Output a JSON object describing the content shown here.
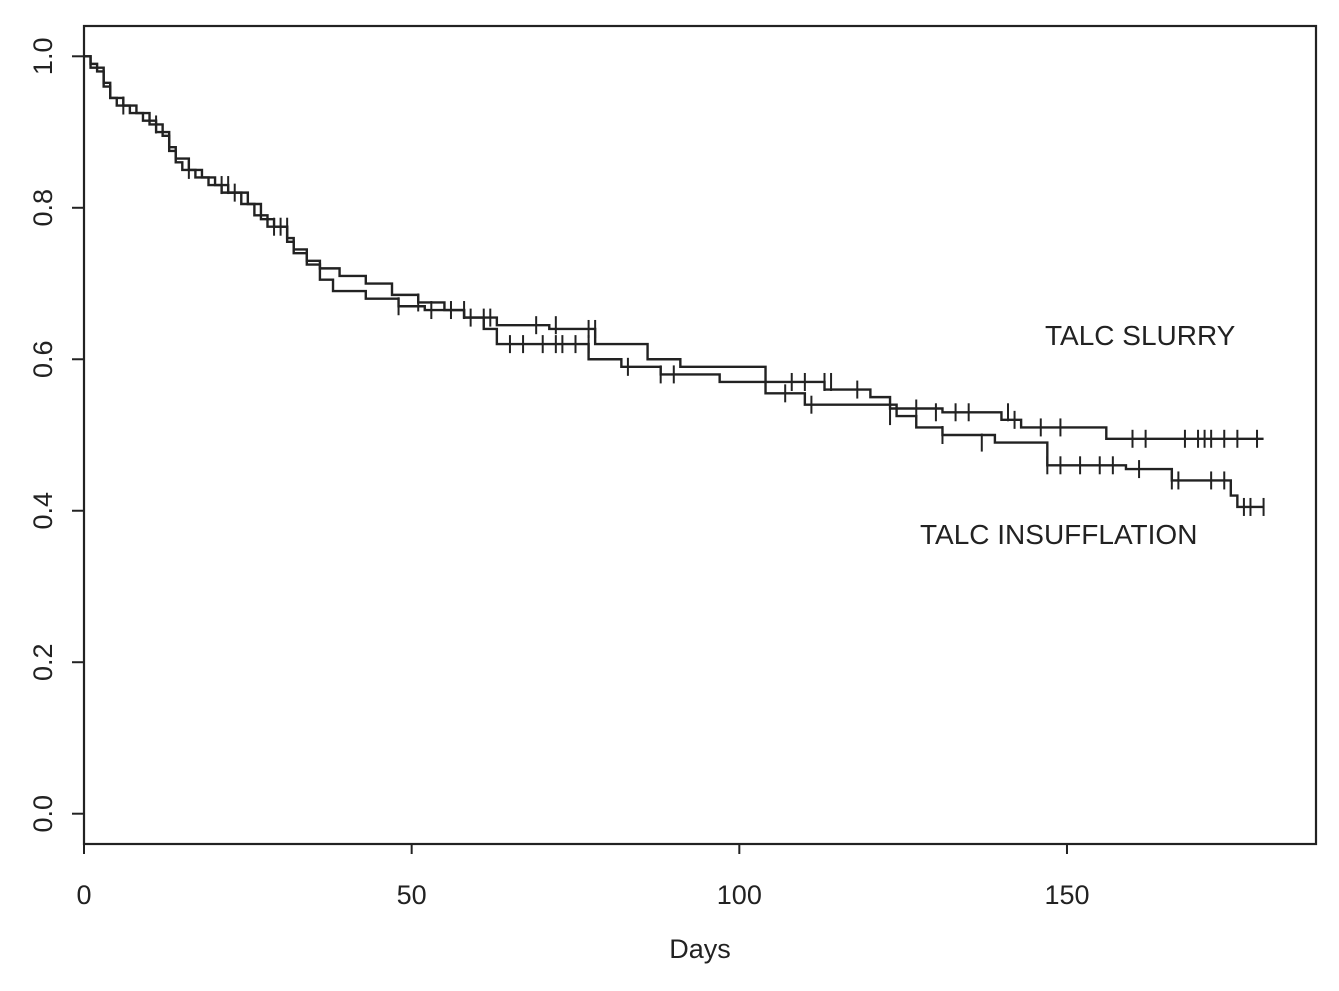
{
  "chart_data": {
    "type": "line",
    "xlabel": "Days",
    "ylabel": "",
    "xlim": [
      0,
      188
    ],
    "ylim": [
      -0.04,
      1.04
    ],
    "xticks": [
      0,
      50,
      100,
      150
    ],
    "xtick_labels": [
      "0",
      "50",
      "100",
      "150"
    ],
    "yticks": [
      0.0,
      0.2,
      0.4,
      0.6,
      0.8,
      1.0
    ],
    "ytick_labels": [
      "0.0",
      "0.2",
      "0.4",
      "0.6",
      "0.8",
      "1.0"
    ],
    "grid": false,
    "annotations": [
      "TALC SLURRY",
      "TALC INSUFFLATION"
    ],
    "series": [
      {
        "label_ref": 0,
        "steps": [
          [
            0,
            1.0
          ],
          [
            1,
            0.99
          ],
          [
            2,
            0.98
          ],
          [
            3,
            0.96
          ],
          [
            4,
            0.945
          ],
          [
            6,
            0.935
          ],
          [
            8,
            0.925
          ],
          [
            10,
            0.91
          ],
          [
            12,
            0.895
          ],
          [
            13,
            0.88
          ],
          [
            14,
            0.865
          ],
          [
            16,
            0.85
          ],
          [
            18,
            0.84
          ],
          [
            20,
            0.83
          ],
          [
            22,
            0.82
          ],
          [
            25,
            0.805
          ],
          [
            27,
            0.785
          ],
          [
            29,
            0.775
          ],
          [
            31,
            0.76
          ],
          [
            32,
            0.745
          ],
          [
            34,
            0.73
          ],
          [
            36,
            0.72
          ],
          [
            39,
            0.71
          ],
          [
            43,
            0.7
          ],
          [
            47,
            0.685
          ],
          [
            51,
            0.675
          ],
          [
            55,
            0.665
          ],
          [
            58,
            0.655
          ],
          [
            63,
            0.645
          ],
          [
            71,
            0.64
          ],
          [
            78,
            0.62
          ],
          [
            86,
            0.6
          ],
          [
            91,
            0.59
          ],
          [
            104,
            0.57
          ],
          [
            113,
            0.56
          ],
          [
            120,
            0.55
          ],
          [
            123,
            0.535
          ],
          [
            131,
            0.53
          ],
          [
            140,
            0.52
          ],
          [
            143,
            0.51
          ],
          [
            156,
            0.495
          ],
          [
            180,
            0.495
          ]
        ],
        "censors": [
          [
            6,
            0.935
          ],
          [
            11,
            0.91
          ],
          [
            21,
            0.83
          ],
          [
            22,
            0.83
          ],
          [
            29,
            0.775
          ],
          [
            31,
            0.775
          ],
          [
            51,
            0.675
          ],
          [
            56,
            0.665
          ],
          [
            58,
            0.665
          ],
          [
            59,
            0.655
          ],
          [
            61,
            0.655
          ],
          [
            62,
            0.655
          ],
          [
            69,
            0.645
          ],
          [
            72,
            0.645
          ],
          [
            77,
            0.64
          ],
          [
            78,
            0.64
          ],
          [
            108,
            0.57
          ],
          [
            110,
            0.57
          ],
          [
            113,
            0.57
          ],
          [
            114,
            0.57
          ],
          [
            118,
            0.56
          ],
          [
            127,
            0.535
          ],
          [
            130,
            0.53
          ],
          [
            133,
            0.53
          ],
          [
            135,
            0.53
          ],
          [
            141,
            0.53
          ],
          [
            142,
            0.52
          ],
          [
            146,
            0.51
          ],
          [
            149,
            0.51
          ],
          [
            160,
            0.495
          ],
          [
            162,
            0.495
          ],
          [
            168,
            0.495
          ],
          [
            170,
            0.495
          ],
          [
            171,
            0.495
          ],
          [
            172,
            0.495
          ],
          [
            174,
            0.495
          ],
          [
            176,
            0.495
          ],
          [
            179,
            0.495
          ]
        ]
      },
      {
        "label_ref": 1,
        "steps": [
          [
            0,
            1.0
          ],
          [
            1,
            0.985
          ],
          [
            3,
            0.965
          ],
          [
            4,
            0.945
          ],
          [
            5,
            0.935
          ],
          [
            7,
            0.925
          ],
          [
            9,
            0.915
          ],
          [
            11,
            0.9
          ],
          [
            13,
            0.875
          ],
          [
            14,
            0.86
          ],
          [
            15,
            0.85
          ],
          [
            17,
            0.84
          ],
          [
            19,
            0.83
          ],
          [
            21,
            0.82
          ],
          [
            24,
            0.805
          ],
          [
            26,
            0.79
          ],
          [
            28,
            0.775
          ],
          [
            31,
            0.755
          ],
          [
            32,
            0.74
          ],
          [
            34,
            0.725
          ],
          [
            36,
            0.705
          ],
          [
            38,
            0.69
          ],
          [
            43,
            0.68
          ],
          [
            48,
            0.67
          ],
          [
            52,
            0.665
          ],
          [
            58,
            0.655
          ],
          [
            61,
            0.64
          ],
          [
            63,
            0.62
          ],
          [
            77,
            0.6
          ],
          [
            82,
            0.59
          ],
          [
            88,
            0.58
          ],
          [
            97,
            0.57
          ],
          [
            104,
            0.555
          ],
          [
            110,
            0.54
          ],
          [
            124,
            0.525
          ],
          [
            127,
            0.51
          ],
          [
            131,
            0.5
          ],
          [
            139,
            0.49
          ],
          [
            147,
            0.46
          ],
          [
            159,
            0.455
          ],
          [
            166,
            0.44
          ],
          [
            175,
            0.42
          ],
          [
            176,
            0.405
          ],
          [
            180,
            0.405
          ]
        ],
        "censors": [
          [
            16,
            0.85
          ],
          [
            23,
            0.82
          ],
          [
            30,
            0.775
          ],
          [
            48,
            0.67
          ],
          [
            53,
            0.665
          ],
          [
            65,
            0.62
          ],
          [
            67,
            0.62
          ],
          [
            70,
            0.62
          ],
          [
            72,
            0.62
          ],
          [
            73,
            0.62
          ],
          [
            75,
            0.62
          ],
          [
            77,
            0.62
          ],
          [
            83,
            0.59
          ],
          [
            88,
            0.58
          ],
          [
            90,
            0.58
          ],
          [
            107,
            0.555
          ],
          [
            111,
            0.54
          ],
          [
            123,
            0.525
          ],
          [
            131,
            0.5
          ],
          [
            137,
            0.49
          ],
          [
            147,
            0.46
          ],
          [
            149,
            0.46
          ],
          [
            152,
            0.46
          ],
          [
            155,
            0.46
          ],
          [
            157,
            0.46
          ],
          [
            161,
            0.455
          ],
          [
            166,
            0.44
          ],
          [
            167,
            0.44
          ],
          [
            172,
            0.44
          ],
          [
            174,
            0.44
          ],
          [
            177,
            0.405
          ],
          [
            178,
            0.405
          ],
          [
            180,
            0.405
          ]
        ]
      }
    ]
  }
}
